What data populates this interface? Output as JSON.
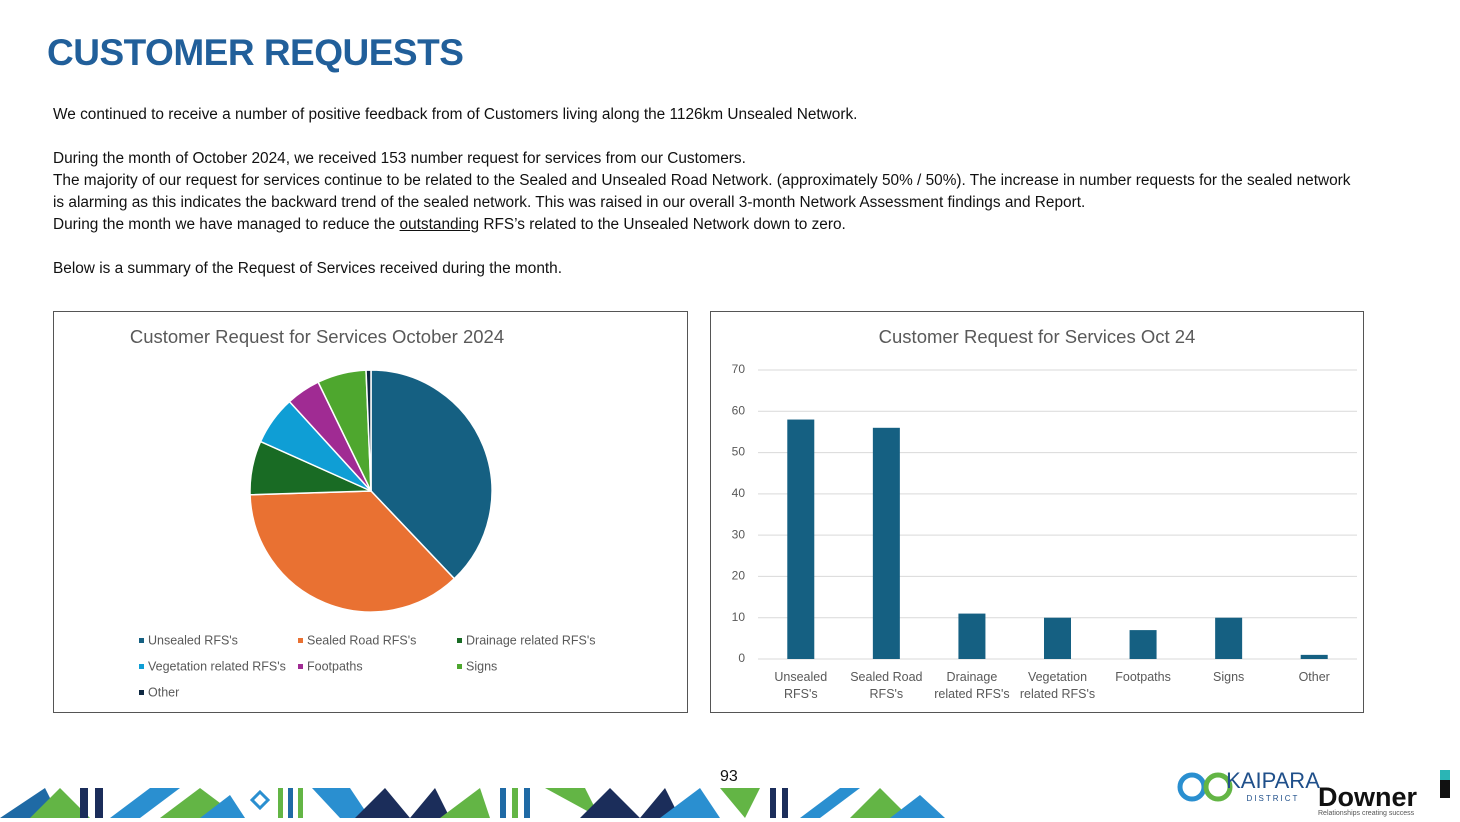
{
  "title": "CUSTOMER REQUESTS",
  "intro": "We continued to receive a number of positive feedback from of Customers living along the 1126km Unsealed Network.",
  "details": [
    "During the month of October 2024, we received 153 number request for services from our Customers.",
    "The majority of our request for services continue to be related to the Sealed and Unsealed Road Network. (approximately 50% / 50%). The increase in number requests for the sealed network is alarming as this indicates the backward trend of the sealed network. This was raised in our overall 3-month Network Assessment findings and Report."
  ],
  "details_last": {
    "before": "During the month we have managed to reduce the ",
    "underlined": "outstanding",
    "after": " RFS’s related to the Unsealed Network down to zero."
  },
  "summary": "Below is a summary of the Request of Services received during the month.",
  "page_number": "93",
  "logos": {
    "kaipara": "KAIPARA",
    "district": "DISTRICT",
    "downer": "Downer",
    "downer_tagline": "Relationships creating success"
  },
  "chart_data": [
    {
      "type": "pie",
      "title": "Customer Request for Services October 2024",
      "categories": [
        "Unsealed RFS's",
        "Sealed Road RFS's",
        "Drainage related RFS's",
        "Vegetation related RFS's",
        "Footpaths",
        "Signs",
        "Other"
      ],
      "values": [
        58,
        56,
        11,
        10,
        7,
        10,
        1
      ],
      "colors": [
        "#156082",
        "#e97132",
        "#196b24",
        "#0f9ed5",
        "#a02b93",
        "#4ea72e",
        "#0e2841"
      ]
    },
    {
      "type": "bar",
      "title": "Customer Request for Services Oct 24",
      "categories": [
        "Unsealed RFS's",
        "Sealed Road RFS's",
        "Drainage related RFS's",
        "Vegetation related RFS's",
        "Footpaths",
        "Signs",
        "Other"
      ],
      "values": [
        58,
        56,
        11,
        10,
        7,
        10,
        1
      ],
      "color": "#156082",
      "ylim": [
        0,
        70
      ],
      "yticks": [
        0,
        10,
        20,
        30,
        40,
        50,
        60,
        70
      ],
      "grid": true
    }
  ]
}
